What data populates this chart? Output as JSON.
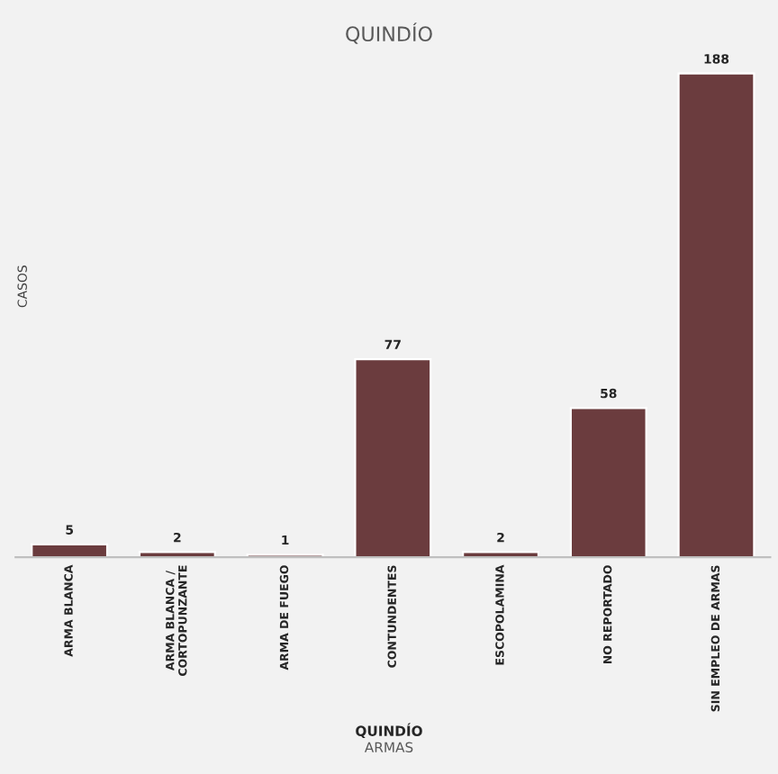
{
  "chart_data": {
    "type": "bar",
    "title": "QUINDÍO",
    "xlabel": "ARMAS",
    "ylabel": "CASOS",
    "annotations": [
      "QUINDÍO"
    ],
    "categories": [
      "ARMA BLANCA",
      "ARMA BLANCA /\nCORTOPUNZANTE",
      "ARMA DE FUEGO",
      "CONTUNDENTES",
      "ESCOPOLAMINA",
      "NO REPORTADO",
      "SIN EMPLEO DE ARMAS"
    ],
    "values": [
      5,
      2,
      1,
      77,
      2,
      58,
      188
    ],
    "color": "#6b3c3e",
    "data_labels": true,
    "grid": false,
    "legend": false
  }
}
